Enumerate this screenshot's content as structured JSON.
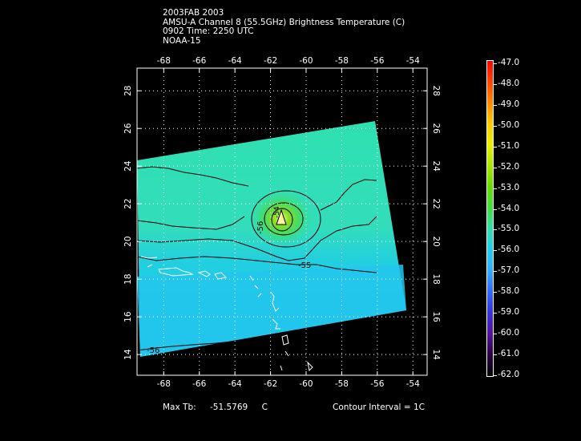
{
  "header": {
    "line1": "2003FAB 2003",
    "line2": "AMSU-A Channel 8 (55.5GHz) Brightness Temperature (C)",
    "line3": "0902 Time: 2250 UTC",
    "line4": "NOAA-15"
  },
  "map": {
    "lon_ticks": [
      "-68",
      "-66",
      "-64",
      "-62",
      "-60",
      "-58",
      "-56",
      "-54"
    ],
    "lat_ticks": [
      "14",
      "16",
      "18",
      "20",
      "22",
      "24",
      "26",
      "28"
    ],
    "lon_range": [
      -69.5,
      -53.2
    ],
    "lat_range": [
      12.9,
      29.2
    ],
    "contour_labels": {
      "c1": "-56",
      "c2": "-55",
      "c3": "-56",
      "c4": "-54"
    }
  },
  "colorbar": {
    "labels": [
      "-47.0",
      "-48.0",
      "-49.0",
      "-50.0",
      "-51.0",
      "-52.0",
      "-53.0",
      "-54.0",
      "-55.0",
      "-56.0",
      "-57.0",
      "-58.0",
      "-59.0",
      "-60.0",
      "-61.0",
      "-62.0"
    ],
    "colors": [
      "#ff0000",
      "#ff4400",
      "#ff8800",
      "#ffcc00",
      "#e8ee00",
      "#a8e800",
      "#66dd00",
      "#44dd44",
      "#33ddaa",
      "#22ccee",
      "#33aaff",
      "#3366ff",
      "#3333dd",
      "#551199",
      "#2a0044",
      "#000000"
    ]
  },
  "footer": {
    "max_label": "Max Tb:",
    "max_value": "-51.5769",
    "max_unit": "C",
    "contour_interval": "Contour Interval = 1C"
  }
}
